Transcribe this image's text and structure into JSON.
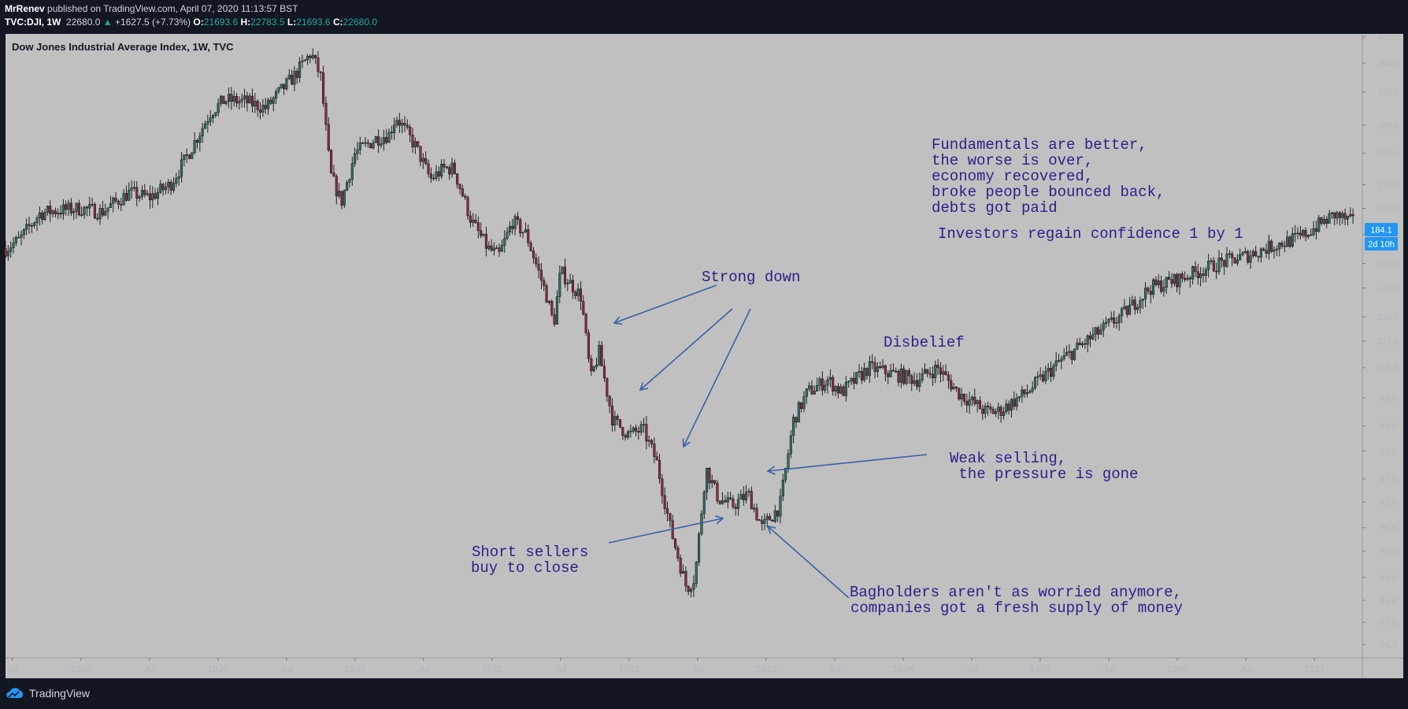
{
  "header": {
    "author": "MrRenev",
    "published": "published on TradingView.com, April 07, 2020 11:13:57 BST",
    "symbol": "TVC:DJI, 1W",
    "last": "22680.0",
    "change": "+1627.5 (+7.73%)",
    "o_label": "O:",
    "o_value": "21693.6",
    "h_label": "H:",
    "h_value": "22783.5",
    "l_label": "L:",
    "l_value": "21693.6",
    "c_label": "C:",
    "c_value": "22680.0"
  },
  "footer": {
    "brand": "TradingView"
  },
  "colors": {
    "plot_bg": "#c0c0c0",
    "page_bg": "#131722",
    "up": "#2f6f6a",
    "down": "#8a2a44",
    "annotation": "#2a2189",
    "arrow": "#3d5fa8",
    "badge": "#2196f3"
  },
  "chart_data": {
    "type": "candlestick",
    "title": "Dow Jones Industrial Average Index, 1W, TVC",
    "scale": "log",
    "ylim": [
      32.5,
      405
    ],
    "yticks": [
      "400.0",
      "360.0",
      "320.0",
      "280.0",
      "250.0",
      "220.0",
      "200.0",
      "180.0",
      "160.0",
      "145.0",
      "129.0",
      "117.0",
      "105.0",
      "93.0",
      "83.0",
      "75.0",
      "67.0",
      "61.0",
      "55.0",
      "50.0",
      "45.0",
      "41.0",
      "37.5",
      "34.3"
    ],
    "ytick_values": [
      400,
      360,
      320,
      280,
      250,
      220,
      200,
      180,
      160,
      145,
      129,
      117,
      105,
      93,
      83,
      75,
      67,
      61,
      55,
      50,
      45,
      41,
      37.5,
      34.3
    ],
    "xticks": [
      "Jul",
      "1928",
      "Jul",
      "1929",
      "Jul",
      "1930",
      "Jul",
      "1931",
      "Jul",
      "1932",
      "Jul",
      "1933",
      "Jul",
      "1934",
      "Jul",
      "1935",
      "Jul",
      "1936",
      "Jul",
      "1937"
    ],
    "xtick_dates": [
      1927.5,
      1928.0,
      1928.5,
      1929.0,
      1929.5,
      1930.0,
      1930.5,
      1931.0,
      1931.5,
      1932.0,
      1932.5,
      1933.0,
      1933.5,
      1934.0,
      1934.5,
      1935.0,
      1935.5,
      1936.0,
      1936.5,
      1937.0
    ],
    "xlim": [
      1927.45,
      1937.35
    ],
    "price_badge": "184.1",
    "time_badge": "2d 10h",
    "path_anchors": [
      [
        1927.45,
        170
      ],
      [
        1927.55,
        176
      ],
      [
        1927.7,
        196
      ],
      [
        1927.8,
        198
      ],
      [
        1928.0,
        200
      ],
      [
        1928.15,
        197
      ],
      [
        1928.35,
        213
      ],
      [
        1928.5,
        209
      ],
      [
        1928.65,
        220
      ],
      [
        1928.75,
        241
      ],
      [
        1928.95,
        296
      ],
      [
        1929.05,
        310
      ],
      [
        1929.2,
        308
      ],
      [
        1929.35,
        300
      ],
      [
        1929.45,
        320
      ],
      [
        1929.55,
        340
      ],
      [
        1929.68,
        375
      ],
      [
        1929.75,
        340
      ],
      [
        1929.82,
        230
      ],
      [
        1929.9,
        205
      ],
      [
        1930.0,
        250
      ],
      [
        1930.15,
        265
      ],
      [
        1930.25,
        270
      ],
      [
        1930.3,
        290
      ],
      [
        1930.45,
        255
      ],
      [
        1930.55,
        225
      ],
      [
        1930.65,
        235
      ],
      [
        1930.72,
        235
      ],
      [
        1930.85,
        190
      ],
      [
        1930.97,
        170
      ],
      [
        1931.05,
        165
      ],
      [
        1931.15,
        190
      ],
      [
        1931.25,
        180
      ],
      [
        1931.4,
        140
      ],
      [
        1931.45,
        125
      ],
      [
        1931.5,
        155
      ],
      [
        1931.65,
        140
      ],
      [
        1931.72,
        100
      ],
      [
        1931.78,
        112
      ],
      [
        1931.88,
        85
      ],
      [
        1932.0,
        80
      ],
      [
        1932.1,
        82
      ],
      [
        1932.2,
        72
      ],
      [
        1932.3,
        55
      ],
      [
        1932.42,
        43
      ],
      [
        1932.48,
        45
      ],
      [
        1932.56,
        70
      ],
      [
        1932.65,
        62
      ],
      [
        1932.75,
        60
      ],
      [
        1932.87,
        63
      ],
      [
        1932.97,
        55
      ],
      [
        1933.1,
        60
      ],
      [
        1933.2,
        85
      ],
      [
        1933.3,
        95
      ],
      [
        1933.45,
        100
      ],
      [
        1933.55,
        95
      ],
      [
        1933.75,
        105
      ],
      [
        1934.1,
        100
      ],
      [
        1934.25,
        105
      ],
      [
        1934.4,
        95
      ],
      [
        1934.6,
        88
      ],
      [
        1934.7,
        88
      ],
      [
        1934.9,
        95
      ],
      [
        1935.15,
        108
      ],
      [
        1935.4,
        120
      ],
      [
        1935.6,
        130
      ],
      [
        1935.8,
        145
      ],
      [
        1936.0,
        150
      ],
      [
        1936.3,
        160
      ],
      [
        1936.5,
        165
      ],
      [
        1936.7,
        172
      ],
      [
        1936.9,
        178
      ],
      [
        1937.0,
        185
      ],
      [
        1937.15,
        195
      ],
      [
        1937.3,
        188
      ]
    ],
    "annotations": [
      {
        "lines": [
          "Fundamentals are better,",
          "the worse is over,",
          "economy recovered,",
          "broke people bounced back,",
          "debts got paid"
        ]
      },
      {
        "lines": [
          "Investors regain confidence 1 by 1"
        ]
      },
      {
        "lines": [
          "Strong down"
        ]
      },
      {
        "lines": [
          "Disbelief"
        ]
      },
      {
        "lines": [
          "Weak selling,",
          " the pressure is gone"
        ]
      },
      {
        "lines": [
          "Short sellers",
          "buy to close"
        ]
      },
      {
        "lines": [
          "Bagholders aren't as worried anymore,",
          "companies got a fresh supply of money"
        ]
      }
    ]
  }
}
